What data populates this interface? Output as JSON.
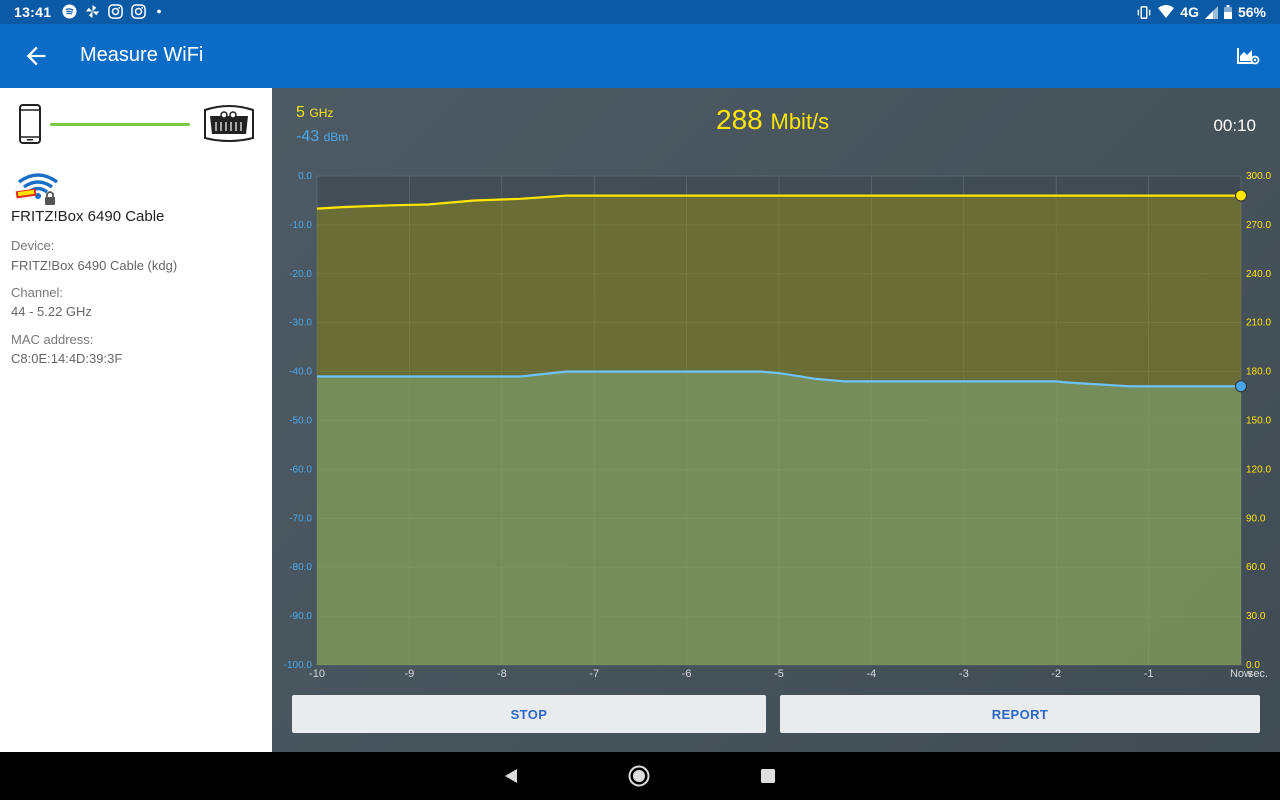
{
  "status_bar": {
    "time": "13:41",
    "left_icons": [
      "spotify-icon",
      "pinwheel-icon",
      "instagram-icon",
      "instagram-icon",
      "dot"
    ],
    "network": "4G",
    "battery": "56%"
  },
  "app_bar": {
    "title": "Measure WiFi"
  },
  "left_panel": {
    "ssid": "FRITZ!Box 6490 Cable",
    "device_label": "Device:",
    "device_value": "FRITZ!Box 6490 Cable (kdg)",
    "channel_label": "Channel:",
    "channel_value": "44 - 5.22 GHz",
    "mac_label": "MAC address:",
    "mac_value": "C8:0E:14:4D:39:3F"
  },
  "measurement": {
    "band_value": "5",
    "band_unit": "GHz",
    "signal_value": "-43",
    "signal_unit": "dBm",
    "speed_value": "288",
    "speed_unit": "Mbit/s",
    "elapsed": "00:10"
  },
  "colors": {
    "speed": "#ffe600",
    "signal": "#4aa8ea"
  },
  "chart_data": {
    "type": "line",
    "x": [
      -10,
      -9,
      -8,
      -7,
      -6,
      -5,
      -4,
      -3,
      -2,
      -1,
      0
    ],
    "x_tick_labels": [
      "-10",
      "-9",
      "-8",
      "-7",
      "-6",
      "-5",
      "-4",
      "-3",
      "-2",
      "-1",
      "Now"
    ],
    "x_unit_label": "sec.",
    "xlim": [
      -10,
      0
    ],
    "left_axis": {
      "ylim": [
        -100,
        0
      ],
      "tick_labels": [
        "0.0",
        "-10.0",
        "-20.0",
        "-30.0",
        "-40.0",
        "-50.0",
        "-60.0",
        "-70.0",
        "-80.0",
        "-90.0",
        "-100.0"
      ]
    },
    "right_axis": {
      "ylim": [
        0,
        300
      ],
      "tick_labels": [
        "300.0",
        "270.0",
        "240.0",
        "210.0",
        "180.0",
        "150.0",
        "120.0",
        "90.0",
        "60.0",
        "30.0",
        "0.0"
      ]
    },
    "series": [
      {
        "axis": "right",
        "color": "#ffe600",
        "x": [
          -10,
          -9.7,
          -9.2,
          -8.8,
          -8.3,
          -7.8,
          -7.3,
          -7,
          -6,
          -5,
          -4,
          -3,
          -2,
          -1,
          0
        ],
        "values": [
          280,
          281,
          282,
          282.5,
          285,
          286,
          288,
          288,
          288,
          288,
          288,
          288,
          288,
          288,
          288
        ]
      },
      {
        "axis": "left",
        "color": "#6ec3ff",
        "x": [
          -10,
          -9,
          -8,
          -7.8,
          -7.3,
          -7,
          -6,
          -5.2,
          -5,
          -4.6,
          -4.3,
          -4,
          -3,
          -2,
          -1.9,
          -1.2,
          -1,
          0
        ],
        "values": [
          -41,
          -41,
          -41,
          -41,
          -40,
          -40,
          -40,
          -40,
          -40.3,
          -41.5,
          -42,
          -42,
          -42,
          -42,
          -42.2,
          -43,
          -43,
          -43
        ]
      }
    ],
    "grid": true
  },
  "buttons": {
    "stop": "STOP",
    "report": "REPORT"
  }
}
